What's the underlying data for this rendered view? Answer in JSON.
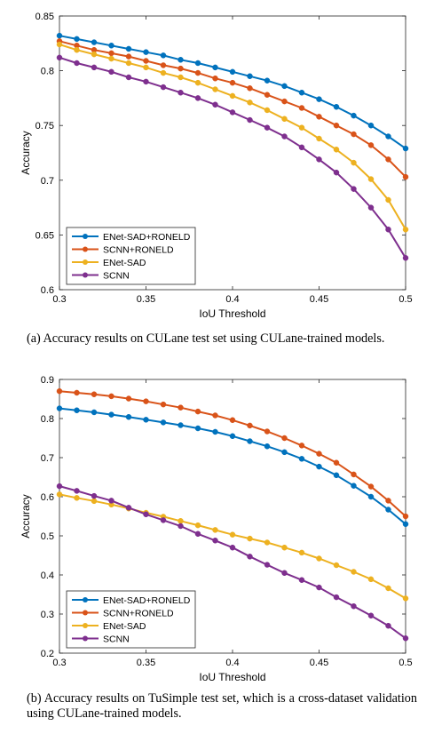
{
  "chart_data": [
    {
      "type": "line",
      "x": [
        0.3,
        0.31,
        0.32,
        0.33,
        0.34,
        0.35,
        0.36,
        0.37,
        0.38,
        0.39,
        0.4,
        0.41,
        0.42,
        0.43,
        0.44,
        0.45,
        0.46,
        0.47,
        0.48,
        0.49,
        0.5
      ],
      "xlabel": "IoU Threshold",
      "ylabel": "Accuracy",
      "xlim": [
        0.3,
        0.5
      ],
      "ylim": [
        0.6,
        0.85
      ],
      "x_ticks": [
        "0.3",
        "0.35",
        "0.4",
        "0.45",
        "0.5"
      ],
      "y_ticks": [
        "0.6",
        "0.65",
        "0.7",
        "0.75",
        "0.8",
        "0.85"
      ],
      "grid": false,
      "legend_position": "bottom-left",
      "series": [
        {
          "name": "ENet-SAD+RONELD",
          "color": "#0072BD",
          "values": [
            0.832,
            0.829,
            0.826,
            0.823,
            0.82,
            0.817,
            0.814,
            0.81,
            0.807,
            0.803,
            0.799,
            0.795,
            0.791,
            0.786,
            0.78,
            0.774,
            0.767,
            0.759,
            0.75,
            0.74,
            0.729
          ]
        },
        {
          "name": "SCNN+RONELD",
          "color": "#D95319",
          "values": [
            0.827,
            0.823,
            0.819,
            0.816,
            0.813,
            0.809,
            0.805,
            0.802,
            0.798,
            0.793,
            0.789,
            0.784,
            0.778,
            0.772,
            0.766,
            0.758,
            0.75,
            0.742,
            0.732,
            0.719,
            0.703
          ]
        },
        {
          "name": "ENet-SAD",
          "color": "#EDB120",
          "values": [
            0.824,
            0.819,
            0.815,
            0.811,
            0.807,
            0.803,
            0.798,
            0.794,
            0.789,
            0.783,
            0.777,
            0.771,
            0.764,
            0.756,
            0.748,
            0.738,
            0.728,
            0.716,
            0.701,
            0.682,
            0.655
          ]
        },
        {
          "name": "SCNN",
          "color": "#7E2F8E",
          "values": [
            0.812,
            0.807,
            0.803,
            0.799,
            0.794,
            0.79,
            0.785,
            0.78,
            0.775,
            0.769,
            0.762,
            0.755,
            0.748,
            0.74,
            0.73,
            0.719,
            0.707,
            0.692,
            0.675,
            0.655,
            0.629
          ]
        }
      ]
    },
    {
      "type": "line",
      "x": [
        0.3,
        0.31,
        0.32,
        0.33,
        0.34,
        0.35,
        0.36,
        0.37,
        0.38,
        0.39,
        0.4,
        0.41,
        0.42,
        0.43,
        0.44,
        0.45,
        0.46,
        0.47,
        0.48,
        0.49,
        0.5
      ],
      "xlabel": "IoU Threshold",
      "ylabel": "Accuracy",
      "xlim": [
        0.3,
        0.5
      ],
      "ylim": [
        0.2,
        0.9
      ],
      "x_ticks": [
        "0.3",
        "0.35",
        "0.4",
        "0.45",
        "0.5"
      ],
      "y_ticks": [
        "0.2",
        "0.3",
        "0.4",
        "0.5",
        "0.6",
        "0.7",
        "0.8",
        "0.9"
      ],
      "grid": false,
      "legend_position": "bottom-left",
      "series": [
        {
          "name": "ENet-SAD+RONELD",
          "color": "#0072BD",
          "values": [
            0.826,
            0.821,
            0.816,
            0.81,
            0.804,
            0.797,
            0.79,
            0.783,
            0.775,
            0.766,
            0.755,
            0.742,
            0.729,
            0.714,
            0.697,
            0.677,
            0.655,
            0.628,
            0.6,
            0.567,
            0.53
          ]
        },
        {
          "name": "SCNN+RONELD",
          "color": "#D95319",
          "values": [
            0.87,
            0.866,
            0.862,
            0.857,
            0.851,
            0.844,
            0.836,
            0.828,
            0.818,
            0.808,
            0.796,
            0.782,
            0.767,
            0.75,
            0.731,
            0.71,
            0.687,
            0.657,
            0.626,
            0.59,
            0.55
          ]
        },
        {
          "name": "ENet-SAD",
          "color": "#EDB120",
          "values": [
            0.606,
            0.597,
            0.589,
            0.58,
            0.57,
            0.559,
            0.549,
            0.538,
            0.527,
            0.515,
            0.503,
            0.493,
            0.483,
            0.47,
            0.457,
            0.442,
            0.425,
            0.408,
            0.389,
            0.366,
            0.34
          ]
        },
        {
          "name": "SCNN",
          "color": "#7E2F8E",
          "values": [
            0.627,
            0.615,
            0.602,
            0.59,
            0.572,
            0.555,
            0.54,
            0.525,
            0.505,
            0.488,
            0.47,
            0.447,
            0.426,
            0.405,
            0.387,
            0.368,
            0.343,
            0.32,
            0.296,
            0.27,
            0.238
          ]
        }
      ]
    }
  ],
  "captions": {
    "a": "(a) Accuracy results on CULane test set using CULane-trained models.",
    "b": "(b) Accuracy results on TuSimple test set, which is a cross-dataset validation using CULane-trained models."
  }
}
